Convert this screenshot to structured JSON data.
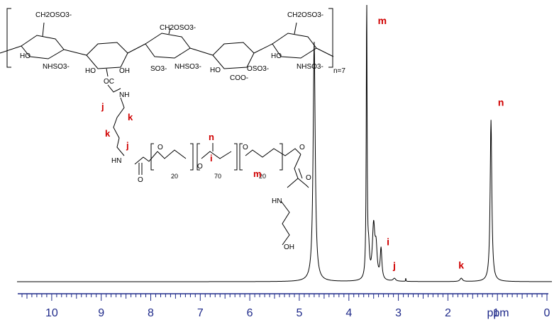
{
  "chart_data": {
    "type": "line",
    "title": "",
    "xlabel": "ppm",
    "ylabel": "",
    "xlim": [
      10.7,
      -0.1
    ],
    "x_reversed": true,
    "grid": false,
    "axis_color": "#1f2a8a",
    "peak_label_color": "#d00000",
    "x_ticks": [
      10,
      9,
      8,
      7,
      6,
      5,
      4,
      3,
      2,
      1,
      0
    ],
    "x_tick_labels": [
      "10",
      "9",
      "8",
      "7",
      "6",
      "5",
      "4",
      "3",
      "2",
      "1",
      "0"
    ],
    "peaks": [
      {
        "x": 4.7,
        "height": 0.86,
        "width": 0.025,
        "label": ""
      },
      {
        "x": 3.64,
        "height": 1.0,
        "width": 0.01,
        "label": "m"
      },
      {
        "x": 3.6,
        "height": 0.09,
        "width": 0.02,
        "label": ""
      },
      {
        "x": 3.5,
        "height": 0.19,
        "width": 0.03,
        "label": ""
      },
      {
        "x": 3.45,
        "height": 0.1,
        "width": 0.025,
        "label": ""
      },
      {
        "x": 3.35,
        "height": 0.11,
        "width": 0.02,
        "label": "i"
      },
      {
        "x": 3.08,
        "height": 0.01,
        "width": 0.03,
        "label": "j"
      },
      {
        "x": 2.85,
        "height": 0.014,
        "width": 0.004,
        "label": ""
      },
      {
        "x": 1.73,
        "height": 0.012,
        "width": 0.03,
        "label": "k"
      },
      {
        "x": 1.13,
        "height": 0.58,
        "width": 0.02,
        "label": "n"
      }
    ]
  },
  "structure": {
    "ring1": {
      "top": "CH2OSO3-",
      "left": "HO",
      "bottom": "NHSO3-"
    },
    "ring2": {
      "left": "HO",
      "right": "OH"
    },
    "ring3": {
      "top": "CH2OSO3-",
      "bottom_left": "SO3-",
      "bottom": "NHSO3-"
    },
    "ring4": {
      "left": "HO",
      "right": "OSO3-",
      "bottom": "COO-"
    },
    "ring5": {
      "top": "CH2OSO3-",
      "left": "HO",
      "bottom": "NHSO3-"
    },
    "repeat": "n=7",
    "linker_top": [
      "OC",
      "NH"
    ],
    "chain_labels": [
      "j",
      "k",
      "k",
      "j"
    ],
    "nh": "HN",
    "carbonyl_o": "O",
    "peo1_count": "20",
    "ppo_count": "70",
    "peo2_count": "20",
    "ppo_labels": [
      "n",
      "i"
    ],
    "peo_label": "m",
    "o_letter": "O",
    "end_nh": "HN",
    "end_oh": "OH"
  }
}
